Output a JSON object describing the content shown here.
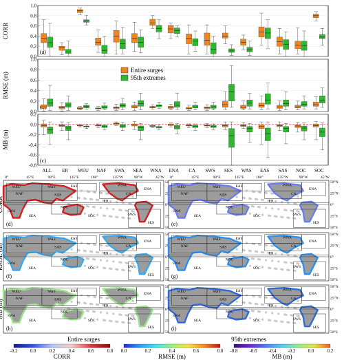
{
  "legend": {
    "entire": "Entire surges",
    "extremes": "95th extremes",
    "entire_color": "#f0841e",
    "extremes_color": "#2db82d"
  },
  "chart_data": [
    {
      "type": "box",
      "panel": "(a)",
      "ylabel": "CORR",
      "ylim": [
        0.0,
        1.0
      ],
      "yticks": [
        "0.0",
        "0.2",
        "0.4",
        "0.6",
        "0.8",
        "1.0"
      ],
      "categories": [
        "ALL",
        "ER",
        "WEU",
        "NAF",
        "SWA",
        "SEA",
        "WNA",
        "ENA",
        "CA",
        "SWS",
        "SES",
        "WAS",
        "EAS",
        "SAS",
        "NOC",
        "SOC"
      ],
      "series": [
        {
          "name": "Entire surges",
          "color": "#f0841e",
          "boxes": [
            [
              0.05,
              0.27,
              0.36,
              0.45,
              0.72
            ],
            [
              0.03,
              0.12,
              0.17,
              0.2,
              0.27
            ],
            [
              0.82,
              0.86,
              0.9,
              0.92,
              0.95
            ],
            [
              0.08,
              0.22,
              0.28,
              0.36,
              0.52
            ],
            [
              0.05,
              0.28,
              0.4,
              0.51,
              0.7
            ],
            [
              0.1,
              0.27,
              0.36,
              0.45,
              0.67
            ],
            [
              0.55,
              0.61,
              0.66,
              0.73,
              0.8
            ],
            [
              0.35,
              0.46,
              0.54,
              0.61,
              0.66
            ],
            [
              0.05,
              0.25,
              0.36,
              0.44,
              0.62
            ],
            [
              0.05,
              0.22,
              0.32,
              0.46,
              0.62
            ],
            [
              0.25,
              0.36,
              0.4,
              0.46,
              0.6
            ],
            [
              0.13,
              0.22,
              0.28,
              0.34,
              0.42
            ],
            [
              0.22,
              0.38,
              0.48,
              0.58,
              0.85
            ],
            [
              0.05,
              0.2,
              0.29,
              0.38,
              0.55
            ],
            [
              0.05,
              0.15,
              0.22,
              0.3,
              0.56
            ],
            [
              0.7,
              0.76,
              0.8,
              0.83,
              0.88
            ]
          ]
        },
        {
          "name": "95th extremes",
          "color": "#2db82d",
          "boxes": [
            [
              0.0,
              0.18,
              0.27,
              0.38,
              0.65
            ],
            [
              0.0,
              0.06,
              0.09,
              0.14,
              0.3
            ],
            [
              0.62,
              0.67,
              0.7,
              0.72,
              0.8
            ],
            [
              0.0,
              0.06,
              0.12,
              0.22,
              0.4
            ],
            [
              0.05,
              0.15,
              0.25,
              0.34,
              0.57
            ],
            [
              0.07,
              0.18,
              0.28,
              0.38,
              0.52
            ],
            [
              0.35,
              0.48,
              0.55,
              0.61,
              0.72
            ],
            [
              0.38,
              0.45,
              0.51,
              0.56,
              0.6
            ],
            [
              0.1,
              0.21,
              0.3,
              0.35,
              0.5
            ],
            [
              0.0,
              0.05,
              0.14,
              0.27,
              0.4
            ],
            [
              0.02,
              0.08,
              0.11,
              0.15,
              0.23
            ],
            [
              0.02,
              0.09,
              0.13,
              0.18,
              0.3
            ],
            [
              0.15,
              0.35,
              0.46,
              0.56,
              0.72
            ],
            [
              0.0,
              0.14,
              0.24,
              0.33,
              0.48
            ],
            [
              0.0,
              0.12,
              0.21,
              0.3,
              0.5
            ],
            [
              0.22,
              0.35,
              0.38,
              0.43,
              0.55
            ]
          ]
        }
      ]
    },
    {
      "type": "box",
      "panel": "(b)",
      "ylabel": "RMSE (m)",
      "ylim": [
        0.0,
        1.0
      ],
      "yticks": [
        "0.0",
        "0.2",
        "0.4",
        "0.6",
        "0.8",
        "1.0"
      ],
      "categories": [
        "ALL",
        "ER",
        "WEU",
        "NAF",
        "SWA",
        "SEA",
        "WNA",
        "ENA",
        "CA",
        "SWS",
        "SES",
        "WAS",
        "EAS",
        "SAS",
        "NOC",
        "SOC"
      ],
      "series": [
        {
          "name": "Entire surges",
          "color": "#f0841e",
          "boxes": [
            [
              0.01,
              0.06,
              0.09,
              0.13,
              0.24
            ],
            [
              0.01,
              0.05,
              0.07,
              0.1,
              0.17
            ],
            [
              0.03,
              0.05,
              0.06,
              0.08,
              0.1
            ],
            [
              0.02,
              0.05,
              0.06,
              0.07,
              0.1
            ],
            [
              0.02,
              0.05,
              0.07,
              0.09,
              0.14
            ],
            [
              0.02,
              0.07,
              0.09,
              0.12,
              0.18
            ],
            [
              0.05,
              0.07,
              0.08,
              0.1,
              0.13
            ],
            [
              0.03,
              0.06,
              0.08,
              0.1,
              0.14
            ],
            [
              0.02,
              0.05,
              0.06,
              0.08,
              0.12
            ],
            [
              0.02,
              0.05,
              0.07,
              0.09,
              0.13
            ],
            [
              0.04,
              0.08,
              0.13,
              0.2,
              0.38
            ],
            [
              0.03,
              0.06,
              0.08,
              0.12,
              0.2
            ],
            [
              0.03,
              0.08,
              0.11,
              0.16,
              0.3
            ],
            [
              0.02,
              0.06,
              0.09,
              0.12,
              0.2
            ],
            [
              0.03,
              0.07,
              0.09,
              0.12,
              0.2
            ],
            [
              0.05,
              0.1,
              0.13,
              0.18,
              0.28
            ]
          ]
        },
        {
          "name": "95th extremes",
          "color": "#2db82d",
          "boxes": [
            [
              0.02,
              0.1,
              0.16,
              0.24,
              0.5
            ],
            [
              0.02,
              0.08,
              0.12,
              0.17,
              0.3
            ],
            [
              0.05,
              0.07,
              0.1,
              0.12,
              0.15
            ],
            [
              0.03,
              0.06,
              0.08,
              0.11,
              0.16
            ],
            [
              0.03,
              0.08,
              0.11,
              0.15,
              0.25
            ],
            [
              0.03,
              0.1,
              0.15,
              0.21,
              0.35
            ],
            [
              0.06,
              0.09,
              0.11,
              0.13,
              0.18
            ],
            [
              0.04,
              0.08,
              0.12,
              0.19,
              0.35
            ],
            [
              0.03,
              0.07,
              0.09,
              0.12,
              0.18
            ],
            [
              0.03,
              0.06,
              0.09,
              0.12,
              0.18
            ],
            [
              0.08,
              0.2,
              0.38,
              0.52,
              0.88
            ],
            [
              0.05,
              0.1,
              0.16,
              0.22,
              0.35
            ],
            [
              0.05,
              0.14,
              0.22,
              0.34,
              0.55
            ],
            [
              0.03,
              0.1,
              0.15,
              0.22,
              0.38
            ],
            [
              0.05,
              0.1,
              0.14,
              0.19,
              0.3
            ],
            [
              0.08,
              0.16,
              0.22,
              0.3,
              0.45
            ]
          ]
        }
      ]
    },
    {
      "type": "box",
      "panel": "(c)",
      "ylabel": "MB (m)",
      "ylim": [
        -0.8,
        0.2
      ],
      "yticks": [
        "-0.8",
        "-0.6",
        "-0.4",
        "-0.2",
        "0.0",
        "0.2"
      ],
      "categories": [
        "ALL",
        "ER",
        "WEU",
        "NAF",
        "SWA",
        "SEA",
        "WNA",
        "ENA",
        "CA",
        "SWS",
        "SES",
        "WAS",
        "EAS",
        "SAS",
        "NOC",
        "SOC"
      ],
      "series": [
        {
          "name": "Entire surges",
          "color": "#f0841e",
          "boxes": [
            [
              -0.2,
              -0.05,
              -0.02,
              0.01,
              0.08
            ],
            [
              -0.12,
              -0.04,
              -0.02,
              0.0,
              0.05
            ],
            [
              -0.05,
              -0.03,
              -0.02,
              -0.01,
              0.0
            ],
            [
              -0.06,
              -0.03,
              -0.02,
              -0.01,
              0.01
            ],
            [
              -0.02,
              0.0,
              0.02,
              0.03,
              0.05
            ],
            [
              -0.1,
              -0.03,
              -0.01,
              0.01,
              0.06
            ],
            [
              -0.06,
              -0.04,
              -0.03,
              -0.02,
              0.0
            ],
            [
              -0.05,
              -0.02,
              -0.01,
              0.01,
              0.03
            ],
            [
              -0.06,
              -0.03,
              -0.02,
              -0.01,
              0.01
            ],
            [
              -0.06,
              -0.03,
              -0.02,
              -0.01,
              0.02
            ],
            [
              -0.1,
              -0.05,
              -0.02,
              0.0,
              0.05
            ],
            [
              -0.08,
              -0.04,
              -0.02,
              0.0,
              0.04
            ],
            [
              -0.4,
              -0.08,
              -0.04,
              -0.01,
              0.05
            ],
            [
              -0.12,
              -0.04,
              -0.02,
              0.0,
              0.05
            ],
            [
              -0.15,
              -0.06,
              -0.03,
              -0.01,
              0.04
            ],
            [
              -0.3,
              -0.05,
              -0.02,
              0.01,
              0.06
            ]
          ]
        },
        {
          "name": "95th extremes",
          "color": "#2db82d",
          "boxes": [
            [
              -0.4,
              -0.18,
              -0.1,
              -0.05,
              0.05
            ],
            [
              -0.3,
              -0.12,
              -0.07,
              -0.03,
              0.03
            ],
            [
              -0.08,
              -0.05,
              -0.04,
              -0.03,
              -0.01
            ],
            [
              -0.1,
              -0.06,
              -0.04,
              -0.02,
              0.0
            ],
            [
              -0.12,
              -0.06,
              -0.03,
              0.0,
              0.04
            ],
            [
              -0.3,
              -0.12,
              -0.06,
              -0.03,
              0.02
            ],
            [
              -0.1,
              -0.07,
              -0.05,
              -0.04,
              -0.01
            ],
            [
              -0.18,
              -0.09,
              -0.05,
              -0.02,
              0.02
            ],
            [
              -0.12,
              -0.06,
              -0.04,
              -0.02,
              0.01
            ],
            [
              -0.1,
              -0.06,
              -0.04,
              -0.02,
              0.01
            ],
            [
              -0.8,
              -0.45,
              -0.22,
              -0.08,
              0.05
            ],
            [
              -0.35,
              -0.15,
              -0.08,
              -0.04,
              0.02
            ],
            [
              -0.65,
              -0.32,
              -0.18,
              -0.07,
              0.05
            ],
            [
              -0.38,
              -0.15,
              -0.08,
              -0.04,
              0.02
            ],
            [
              -0.3,
              -0.13,
              -0.07,
              -0.03,
              0.03
            ],
            [
              -0.5,
              -0.24,
              -0.15,
              -0.07,
              0.03
            ]
          ]
        }
      ]
    }
  ],
  "maps": {
    "row_labels": [
      "CORR",
      "RMSE (m)",
      "MB (m)"
    ],
    "panels": [
      "(d)",
      "(e)",
      "(f)",
      "(g)",
      "(h)",
      "(i)"
    ],
    "lon_labels": [
      "0°",
      "45°E",
      "90°E",
      "135°E",
      "180°",
      "135°W",
      "90°W",
      "45°W"
    ],
    "lat_labels": [
      "50°N",
      "25°N",
      "0°",
      "25°S",
      "50°S"
    ],
    "region_labels": [
      "WEU",
      "WAS",
      "EAS",
      "WNA",
      "ENA",
      "NAF",
      "SAS",
      "CA",
      "ER",
      "SWA",
      "SEA",
      "NOC",
      "SOC",
      "SWS",
      "SES"
    ],
    "col_titles": [
      "Entire surges",
      "95th extremes"
    ],
    "colorbars": [
      {
        "label": "CORR",
        "ticks": [
          "-0.2",
          "0.0",
          "0.2",
          "0.4",
          "0.6",
          "0.8"
        ],
        "colors": [
          "#0a1a8c",
          "#3355ee",
          "#b8c8f4",
          "#f6cccc",
          "#e03a3a",
          "#8c0a0a"
        ]
      },
      {
        "label": "RMSE (m)",
        "ticks": [
          "0.0",
          "0.2",
          "0.4",
          "0.6",
          "0.8"
        ],
        "colors": [
          "#1e2ad6",
          "#2f9af5",
          "#43e0ef",
          "#9af27a",
          "#f5e43a",
          "#f58a1e",
          "#c81414"
        ]
      },
      {
        "label": "MB (m)",
        "ticks": [
          "-0.8",
          "-0.6",
          "-0.4",
          "-0.2",
          "0.0",
          "0.2"
        ],
        "colors": [
          "#3d0a7a",
          "#6a2ad6",
          "#4f7cf0",
          "#58c8f0",
          "#8cf08c",
          "#e8e43a",
          "#f05a1e"
        ]
      }
    ]
  }
}
